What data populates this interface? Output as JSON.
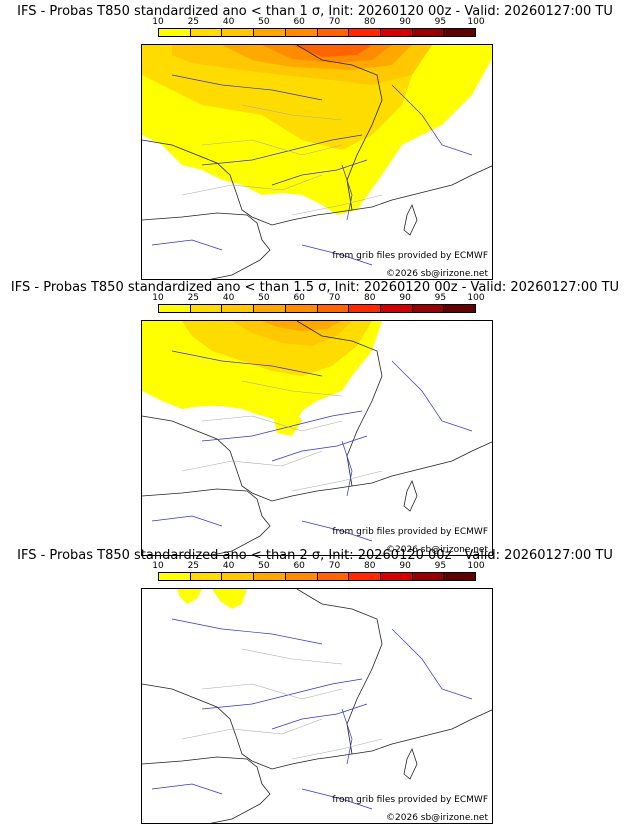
{
  "colorbar": {
    "ticks": [
      "10",
      "25",
      "40",
      "50",
      "60",
      "70",
      "80",
      "90",
      "95",
      "100"
    ],
    "colors": [
      "#ffff00",
      "#ffdc00",
      "#ffc800",
      "#ffa800",
      "#ff8c00",
      "#ff6400",
      "#ff2800",
      "#d20000",
      "#960000",
      "#600000"
    ]
  },
  "panels": [
    {
      "title": "IFS - Probas T850  standardized ano < than 1 σ, Init: 20260120 00z - Valid: 20260127:00 TU",
      "source": "from grib files provided by ECMWF",
      "copyright": "©2026 sb@irizone.net"
    },
    {
      "title": "IFS - Probas T850  standardized ano < than 1.5 σ, Init: 20260120 00z - Valid: 20260127:00 TU",
      "source": "from grib files provided by ECMWF",
      "copyright": "©2026 sb@irizone.net"
    },
    {
      "title": "IFS - Probas T850  standardized ano < than 2 σ, Init: 20260120 00z - Valid: 20260127:00 TU",
      "source": "from grib files provided by ECMWF",
      "copyright": "©2026 sb@irizone.net"
    }
  ]
}
